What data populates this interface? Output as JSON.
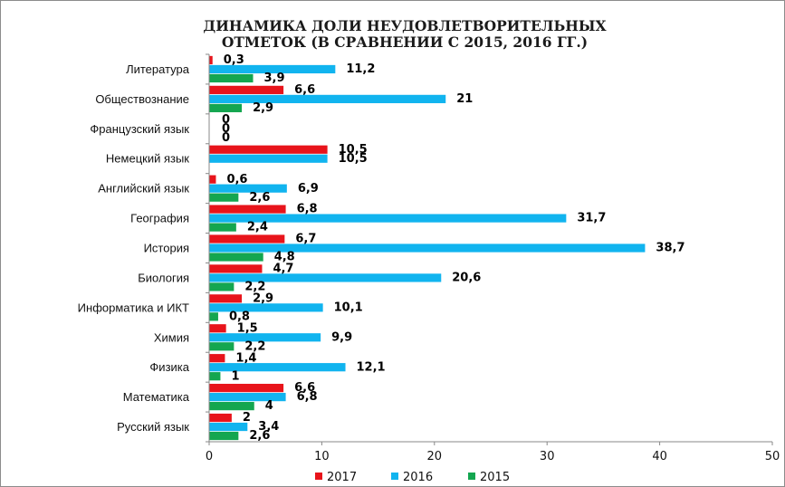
{
  "chart_data": {
    "type": "bar",
    "orientation": "horizontal",
    "title_line1": "ДИНАМИКА ДОЛИ НЕУДОВЛЕТВОРИТЕЛЬНЫХ",
    "title_line2": "ОТМЕТОК (В СРАВНЕНИИ С 2015, 2016 ГГ.)",
    "categories": [
      "Литература",
      "Обществознание",
      "Французский язык",
      "Немецкий язык",
      "Английский язык",
      "География",
      "История",
      "Биология",
      "Информатика и ИКТ",
      "Химия",
      "Физика",
      "Математика",
      "Русский язык"
    ],
    "series": [
      {
        "name": "2017",
        "color": "#e8141b",
        "values": [
          0.3,
          6.6,
          0,
          10.5,
          0.6,
          6.8,
          6.7,
          4.7,
          2.9,
          1.5,
          1.4,
          6.6,
          2
        ],
        "labels": [
          "0,3",
          "6,6",
          "0",
          "10,5",
          "0,6",
          "6,8",
          "6,7",
          "4,7",
          "2,9",
          "1,5",
          "1,4",
          "6,6",
          "2"
        ]
      },
      {
        "name": "2016",
        "color": "#11b4ef",
        "values": [
          11.2,
          21,
          0,
          10.5,
          6.9,
          31.7,
          38.7,
          20.6,
          10.1,
          9.9,
          12.1,
          6.8,
          3.4
        ],
        "labels": [
          "11,2",
          "21",
          "0",
          "10,5",
          "6,9",
          "31,7",
          "38,7",
          "20,6",
          "10,1",
          "9,9",
          "12,1",
          "6,8",
          "3,4"
        ]
      },
      {
        "name": "2015",
        "color": "#14a650",
        "values": [
          3.9,
          2.9,
          0,
          null,
          2.6,
          2.4,
          4.8,
          2.2,
          0.8,
          2.2,
          1,
          4,
          2.6
        ],
        "labels": [
          "3,9",
          "2,9",
          "0",
          "",
          "2,6",
          "2,4",
          "4,8",
          "2,2",
          "0,8",
          "2,2",
          "1",
          "4",
          "2,6"
        ]
      }
    ],
    "xlim": [
      0,
      50
    ],
    "xticks": [
      "0",
      "10",
      "20",
      "30",
      "40",
      "50"
    ],
    "grid": false,
    "legend_position": "bottom"
  }
}
